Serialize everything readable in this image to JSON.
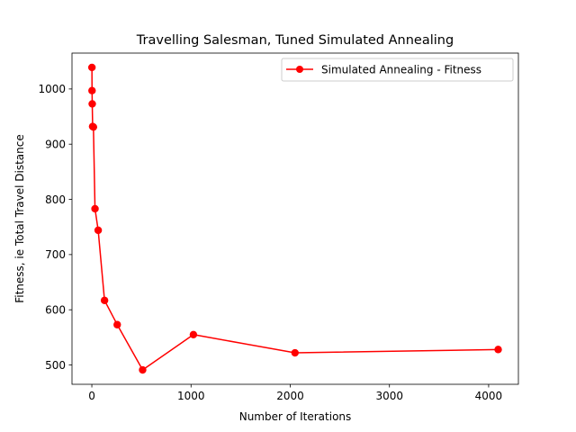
{
  "chart_data": {
    "type": "line",
    "title": "Travelling Salesman, Tuned Simulated Annealing",
    "xlabel": "Number of Iterations",
    "ylabel": "Fitness, ie Total Travel Distance",
    "xlim": [
      -200,
      4300
    ],
    "ylim": [
      465,
      1065
    ],
    "xticks": [
      0,
      1000,
      2000,
      3000,
      4000
    ],
    "yticks": [
      500,
      600,
      700,
      800,
      900,
      1000
    ],
    "grid": false,
    "legend": "top-right",
    "series": [
      {
        "name": "Simulated Annealing - Fitness",
        "color": "#ff0000",
        "marker": "circle",
        "x": [
          1,
          2,
          4,
          8,
          16,
          32,
          64,
          128,
          256,
          512,
          1024,
          2048,
          4096
        ],
        "y": [
          1039,
          997,
          973,
          932,
          931,
          783,
          744,
          617,
          573,
          491,
          555,
          522,
          528
        ]
      }
    ]
  }
}
